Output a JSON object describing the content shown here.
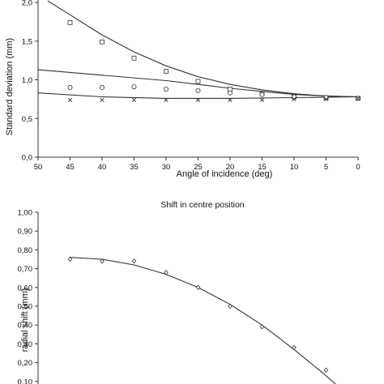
{
  "chart_data": [
    {
      "type": "scatter",
      "title": "",
      "xlabel": "Angle of incidence (deg)",
      "ylabel": "Standard deviation (mm)",
      "xlim": [
        50,
        0
      ],
      "ylim": [
        0,
        2.0
      ],
      "x_ticks": [
        "50",
        "45",
        "40",
        "35",
        "30",
        "25",
        "20",
        "15",
        "10",
        "5",
        "0"
      ],
      "y_ticks": [
        "0,0",
        "0,5",
        "1,0",
        "1,5",
        "2,0"
      ],
      "grid": false,
      "series": [
        {
          "marker": "square",
          "points": [
            [
              45,
              1.74
            ],
            [
              40,
              1.49
            ],
            [
              35,
              1.28
            ],
            [
              30,
              1.11
            ],
            [
              25,
              0.98
            ],
            [
              20,
              0.88
            ],
            [
              15,
              0.82
            ],
            [
              10,
              0.78
            ],
            [
              5,
              0.77
            ],
            [
              0,
              0.76
            ]
          ],
          "trend": [
            [
              48.5,
              2.02
            ],
            [
              45,
              1.84
            ],
            [
              40,
              1.58
            ],
            [
              35,
              1.36
            ],
            [
              30,
              1.18
            ],
            [
              25,
              1.04
            ],
            [
              20,
              0.94
            ],
            [
              15,
              0.87
            ],
            [
              10,
              0.82
            ],
            [
              5,
              0.79
            ],
            [
              0,
              0.78
            ]
          ]
        },
        {
          "marker": "circle",
          "points": [
            [
              45,
              0.9
            ],
            [
              40,
              0.9
            ],
            [
              35,
              0.91
            ],
            [
              30,
              0.88
            ],
            [
              25,
              0.86
            ],
            [
              20,
              0.83
            ],
            [
              15,
              0.81
            ],
            [
              10,
              0.78
            ],
            [
              5,
              0.77
            ],
            [
              0,
              0.76
            ]
          ],
          "trend": [
            [
              50,
              1.13
            ],
            [
              40,
              1.06
            ],
            [
              30,
              0.99
            ],
            [
              25,
              0.94
            ],
            [
              20,
              0.89
            ],
            [
              15,
              0.85
            ],
            [
              10,
              0.81
            ],
            [
              5,
              0.79
            ],
            [
              0,
              0.78
            ]
          ]
        },
        {
          "marker": "cross",
          "points": [
            [
              45,
              0.74
            ],
            [
              40,
              0.74
            ],
            [
              35,
              0.74
            ],
            [
              30,
              0.74
            ],
            [
              25,
              0.74
            ],
            [
              20,
              0.74
            ],
            [
              15,
              0.74
            ],
            [
              10,
              0.75
            ],
            [
              5,
              0.75
            ],
            [
              0,
              0.76
            ]
          ],
          "trend": [
            [
              50,
              0.83
            ],
            [
              40,
              0.78
            ],
            [
              30,
              0.76
            ],
            [
              20,
              0.76
            ],
            [
              10,
              0.77
            ],
            [
              0,
              0.78
            ]
          ]
        }
      ]
    },
    {
      "type": "scatter",
      "title": "Shift in centre position",
      "xlabel": "",
      "ylabel": "radial shift (mm)",
      "xlim": [
        50,
        0
      ],
      "ylim": [
        0,
        1.0
      ],
      "y_ticks": [
        "1,00",
        "0,90",
        "0,80",
        "0,70",
        "0,60",
        "0,50",
        "0,40",
        "0,30",
        "0,20",
        "0,10"
      ],
      "grid": false,
      "series": [
        {
          "marker": "diamond",
          "points": [
            [
              45,
              0.75
            ],
            [
              40,
              0.74
            ],
            [
              35,
              0.74
            ],
            [
              30,
              0.68
            ],
            [
              25,
              0.6
            ],
            [
              20,
              0.5
            ],
            [
              15,
              0.39
            ],
            [
              10,
              0.28
            ],
            [
              5,
              0.16
            ]
          ],
          "trend": [
            [
              45,
              0.76
            ],
            [
              40,
              0.75
            ],
            [
              35,
              0.72
            ],
            [
              30,
              0.67
            ],
            [
              25,
              0.6
            ],
            [
              20,
              0.51
            ],
            [
              15,
              0.4
            ],
            [
              10,
              0.27
            ],
            [
              5,
              0.13
            ],
            [
              3,
              0.07
            ]
          ]
        }
      ]
    }
  ]
}
